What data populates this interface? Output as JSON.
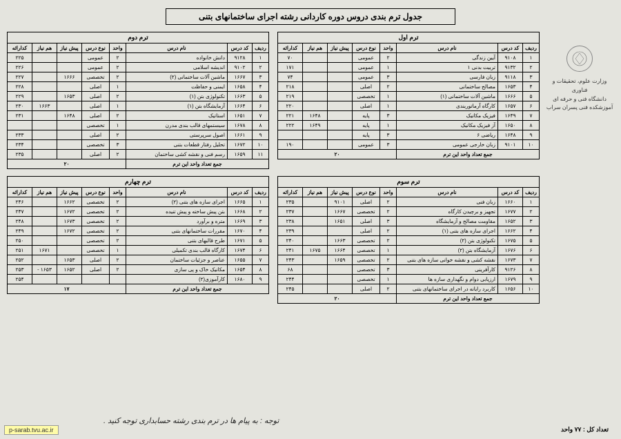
{
  "title": "جدول ترم بندی دروس دوره کاردانی رشته اجرای ساختمانهای بتنی",
  "org": {
    "line1": "وزارت علوم، تحقیقات و فناوری",
    "line2": "دانشگاه فنی و حرفه ای",
    "line3": "آموزشکده فنی پسران سراب"
  },
  "cols": {
    "no": "ردیف",
    "code": "کد درس",
    "name": "نام درس",
    "unit": "واحد",
    "type": "نوع درس",
    "pre": "پیش نیاز",
    "co": "هم نیاز",
    "hour": "کدارائه"
  },
  "footer_label": "جمع تعداد واحد این ترم",
  "total_units_label": "تعداد کل :  ۷۷ واحد",
  "url": "p-sarab.tvu.ac.ir",
  "handwriting": "توجه : به پیام ها در ترم بندی رشته حسابداری توجه کنید .",
  "terms": {
    "t1": {
      "caption": "ترم اول",
      "total": "۲۰",
      "rows": [
        {
          "n": "۱",
          "c": "۹۱۰۸",
          "name": "آیین زندگی",
          "u": "۲",
          "t": "عمومی",
          "p": "",
          "co": "",
          "h": "۷۰"
        },
        {
          "n": "۲",
          "c": "۹۱۳۲",
          "name": "تربیت بدنی ۱",
          "u": "۱",
          "t": "عمومی",
          "p": "",
          "co": "",
          "h": "۱۷۱"
        },
        {
          "n": "۳",
          "c": "۹۱۱۸",
          "name": "زبان فارسی",
          "u": "۳",
          "t": "عمومی",
          "p": "",
          "co": "",
          "h": "۷۴"
        },
        {
          "n": "۴",
          "c": "۱۶۵۳",
          "name": "مصالح ساختمانی",
          "u": "۲",
          "t": "اصلی",
          "p": "",
          "co": "",
          "h": "۲۱۸"
        },
        {
          "n": "۵",
          "c": "۱۶۶۶",
          "name": "ماشین آلات ساختمانی (۱)",
          "u": "۱",
          "t": "تخصصی",
          "p": "",
          "co": "",
          "h": "۲۱۹"
        },
        {
          "n": "۶",
          "c": "۱۶۵۷",
          "name": "کارگاه آرماتوربندی",
          "u": "۱",
          "t": "اصلی",
          "p": "",
          "co": "",
          "h": "۲۲۰"
        },
        {
          "n": "۷",
          "c": "۱۶۴۹",
          "name": "فیزیک مکانیک",
          "u": "۳",
          "t": "پایه",
          "p": "",
          "co": "۱۶۴۸",
          "h": "۲۲۱"
        },
        {
          "n": "۸",
          "c": "۱۶۵۰",
          "name": "آز فیزیک مکانیک",
          "u": "۱",
          "t": "پایه",
          "p": "",
          "co": "۱۶۴۹",
          "h": "۲۲۲"
        },
        {
          "n": "۹",
          "c": "۱۶۴۸",
          "name": "ریاضی ۶",
          "u": "۳",
          "t": "پایه",
          "p": "",
          "co": "",
          "h": ""
        },
        {
          "n": "۱۰",
          "c": "۹۱۰۱",
          "name": "زبان خارجی عمومی",
          "u": "۳",
          "t": "عمومی",
          "p": "",
          "co": "",
          "h": "۱۹۰"
        }
      ]
    },
    "t2": {
      "caption": "ترم دوم",
      "total": "۲۰",
      "rows": [
        {
          "n": "۱",
          "c": "۹۱۲۸",
          "name": "دانش خانواده",
          "u": "۲",
          "t": "عمومی",
          "p": "",
          "co": "",
          "h": "۲۲۵"
        },
        {
          "n": "۲",
          "c": "۹۱۰۲",
          "name": "اندیشه اسلامی",
          "u": "۲",
          "t": "عمومی",
          "p": "",
          "co": "",
          "h": "۲۲۶"
        },
        {
          "n": "۳",
          "c": "۱۶۶۷",
          "name": "ماشین آلات ساختمانی (۲)",
          "u": "۲",
          "t": "تخصصی",
          "p": "۱۶۶۶",
          "co": "",
          "h": "۲۲۷"
        },
        {
          "n": "۴",
          "c": "۱۶۵۸",
          "name": "ایمنی و حفاظت",
          "u": "۱",
          "t": "اصلی",
          "p": "",
          "co": "",
          "h": "۲۲۸"
        },
        {
          "n": "۵",
          "c": "۱۶۶۳",
          "name": "تکنولوژی بتن (۱)",
          "u": "۲",
          "t": "اصلی",
          "p": "۱۶۵۳",
          "co": "",
          "h": "۲۲۹"
        },
        {
          "n": "۶",
          "c": "۱۶۶۴",
          "name": "آزمایشگاه بتن (۱)",
          "u": "۱",
          "t": "اصلی",
          "p": "",
          "co": "۱۶۶۳",
          "h": "۲۳۰"
        },
        {
          "n": "۷",
          "c": "۱۶۵۱",
          "name": "استاتیک",
          "u": "۲",
          "t": "اصلی",
          "p": "۱۶۴۸",
          "co": "",
          "h": "۲۳۱"
        },
        {
          "n": "۸",
          "c": "۱۶۷۸",
          "name": "سیستمهای قالب بندی مدرن",
          "u": "۱",
          "t": "تخصصی",
          "p": "",
          "co": "",
          "h": ""
        },
        {
          "n": "۹",
          "c": "۱۶۶۱",
          "name": "اصول سرپرستی",
          "u": "۲",
          "t": "اصلی",
          "p": "",
          "co": "",
          "h": "۲۳۳"
        },
        {
          "n": "۱۰",
          "c": "۱۶۷۲",
          "name": "تحلیل رفتار قطعات بتنی",
          "u": "۳",
          "t": "تخصصی",
          "p": "",
          "co": "",
          "h": "۲۳۴"
        },
        {
          "n": "۱۱",
          "c": "۱۶۵۹",
          "name": "رسم فنی و نقشه کشی ساختمان",
          "u": "۲",
          "t": "اصلی",
          "p": "",
          "co": "",
          "h": "۲۳۵"
        }
      ]
    },
    "t3": {
      "caption": "ترم سوم",
      "total": "۲۰",
      "rows": [
        {
          "n": "۱",
          "c": "۱۶۶۰",
          "name": "زبان فنی",
          "u": "۲",
          "t": "اصلی",
          "p": "۹۱۰۱",
          "co": "",
          "h": "۲۳۵"
        },
        {
          "n": "۲",
          "c": "۱۶۷۷",
          "name": "تجهیز و برچیدن کارگاه",
          "u": "۲",
          "t": "تخصصی",
          "p": "۱۶۶۷",
          "co": "",
          "h": "۲۳۷"
        },
        {
          "n": "۳",
          "c": "۱۶۵۲",
          "name": "مقاومت مصالح و آزمایشگاه",
          "u": "۳",
          "t": "اصلی",
          "p": "۱۶۵۱",
          "co": "",
          "h": "۲۳۸"
        },
        {
          "n": "۴",
          "c": "۱۶۶۲",
          "name": "اجرای سازه های بتنی (۱)",
          "u": "۲",
          "t": "اصلی",
          "p": "",
          "co": "",
          "h": "۲۳۹"
        },
        {
          "n": "۵",
          "c": "۱۶۷۵",
          "name": "تکنولوژی بتن (۲)",
          "u": "۲",
          "t": "تخصصی",
          "p": "۱۶۶۳",
          "co": "",
          "h": "۲۴۰"
        },
        {
          "n": "۶",
          "c": "۱۶۷۶",
          "name": "آزمایشگاه بتن (۲)",
          "u": "۱",
          "t": "تخصصی",
          "p": "۱۶۶۴",
          "co": "۱۶۷۵",
          "h": "۲۴۱"
        },
        {
          "n": "۷",
          "c": "۱۶۷۳",
          "name": "نقشه کشی و نقشه خوانی سازه های بتنی",
          "u": "۲",
          "t": "تخصصی",
          "p": "۱۶۵۹",
          "co": "",
          "h": "۲۴۳"
        },
        {
          "n": "۸",
          "c": "۹۱۲۶",
          "name": "کارآفرینی",
          "u": "۳",
          "t": "تخصصی",
          "p": "",
          "co": "",
          "h": "۶۸"
        },
        {
          "n": "۹",
          "c": "۱۶۷۹",
          "name": "ارزیابی دوام و نگهداری سازه ها",
          "u": "۱",
          "t": "تخصصی",
          "p": "",
          "co": "",
          "h": "۲۴۴"
        },
        {
          "n": "۱۰",
          "c": "۱۶۵۶",
          "name": "کاربرد رایانه در اجرای ساختمانهای بتنی",
          "u": "۲",
          "t": "اصلی",
          "p": "",
          "co": "",
          "h": "۲۴۵"
        }
      ]
    },
    "t4": {
      "caption": "ترم چهارم",
      "total": "۱۷",
      "rows": [
        {
          "n": "۱",
          "c": "۱۶۶۵",
          "name": "اجرای سازه های بتنی (۲)",
          "u": "۲",
          "t": "تخصصی",
          "p": "۱۶۶۲",
          "co": "",
          "h": "۲۴۶"
        },
        {
          "n": "۲",
          "c": "۱۶۶۸",
          "name": "بتن پیش ساخته و پیش تنیده",
          "u": "۲",
          "t": "تخصصی",
          "p": "۱۶۷۲",
          "co": "",
          "h": "۲۴۷"
        },
        {
          "n": "۳",
          "c": "۱۶۶۹",
          "name": "متره و برآورد",
          "u": "۲",
          "t": "تخصصی",
          "p": "۱۶۷۳",
          "co": "",
          "h": "۲۴۸"
        },
        {
          "n": "۴",
          "c": "۱۶۷۰",
          "name": "مقررات ساختمانهای بتنی",
          "u": "۲",
          "t": "تخصصی",
          "p": "۱۶۷۲",
          "co": "",
          "h": "۲۴۹"
        },
        {
          "n": "۵",
          "c": "۱۶۷۱",
          "name": "طرح قالبهای بتنی",
          "u": "۲",
          "t": "تخصصی",
          "p": "",
          "co": "",
          "h": "۲۵۰"
        },
        {
          "n": "۶",
          "c": "۱۶۷۴",
          "name": "کارگاه قالب بندی تکمیلی",
          "u": "۱",
          "t": "تخصصی",
          "p": "",
          "co": "۱۶۷۱",
          "h": "۲۵۱"
        },
        {
          "n": "۷",
          "c": "۱۶۵۵",
          "name": "عناصر و جزئیات ساختمان",
          "u": "۲",
          "t": "اصلی",
          "p": "۱۶۵۳",
          "co": "",
          "h": "۲۵۲"
        },
        {
          "n": "۸",
          "c": "۱۶۵۴",
          "name": "مکانیک خاک و پی سازی",
          "u": "۲",
          "t": "اصلی",
          "p": "۱۶۵۲",
          "co": "۱۶۵۳ -",
          "h": "۲۵۳"
        },
        {
          "n": "۹",
          "c": "۱۶۸۰",
          "name": "کارآموزی(۲)",
          "u": "",
          "t": "",
          "p": "",
          "co": "",
          "h": "۲۵۴"
        }
      ]
    }
  }
}
